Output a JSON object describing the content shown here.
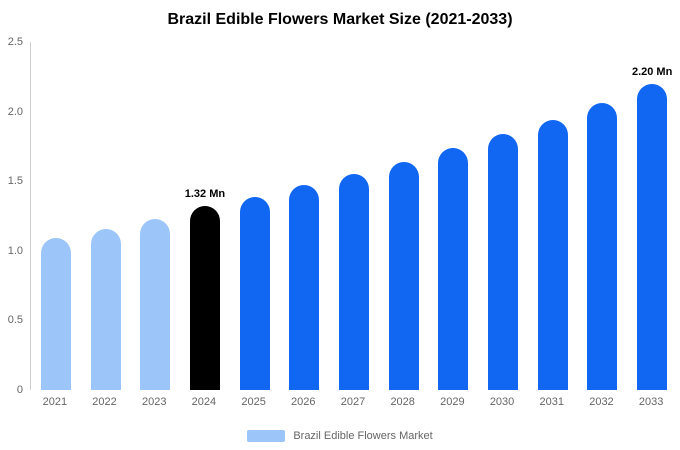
{
  "title": "Brazil Edible Flowers Market Size (2021-2033)",
  "legend": {
    "label": "Brazil Edible Flowers Market",
    "swatch_color": "#9cc6f9"
  },
  "colors": {
    "historic": "#9cc6f9",
    "base_year": "#000000",
    "forecast": "#1166f2"
  },
  "chart_data": {
    "type": "bar",
    "title": "Brazil Edible Flowers Market Size (2021-2033)",
    "unit": "Mn",
    "categories": [
      "2021",
      "2022",
      "2023",
      "2024",
      "2025",
      "2026",
      "2027",
      "2028",
      "2029",
      "2030",
      "2031",
      "2032",
      "2033"
    ],
    "values": [
      1.09,
      1.16,
      1.23,
      1.32,
      1.39,
      1.47,
      1.55,
      1.64,
      1.74,
      1.84,
      1.94,
      2.06,
      2.2
    ],
    "bar_colors": [
      "#9cc6f9",
      "#9cc6f9",
      "#9cc6f9",
      "#000000",
      "#1166f2",
      "#1166f2",
      "#1166f2",
      "#1166f2",
      "#1166f2",
      "#1166f2",
      "#1166f2",
      "#1166f2",
      "#1166f2"
    ],
    "annotations": [
      {
        "category": "2024",
        "text": "1.32 Mn"
      },
      {
        "category": "2033",
        "text": "2.20 Mn"
      }
    ],
    "xlabel": "",
    "ylabel": "",
    "ylim": [
      0,
      2.5
    ],
    "yticks": [
      0,
      0.5,
      1.0,
      1.5,
      2.0,
      2.5
    ],
    "grid": false,
    "legend_position": "bottom",
    "legend_entries": [
      {
        "label": "Brazil Edible Flowers Market",
        "color": "#9cc6f9"
      }
    ]
  }
}
